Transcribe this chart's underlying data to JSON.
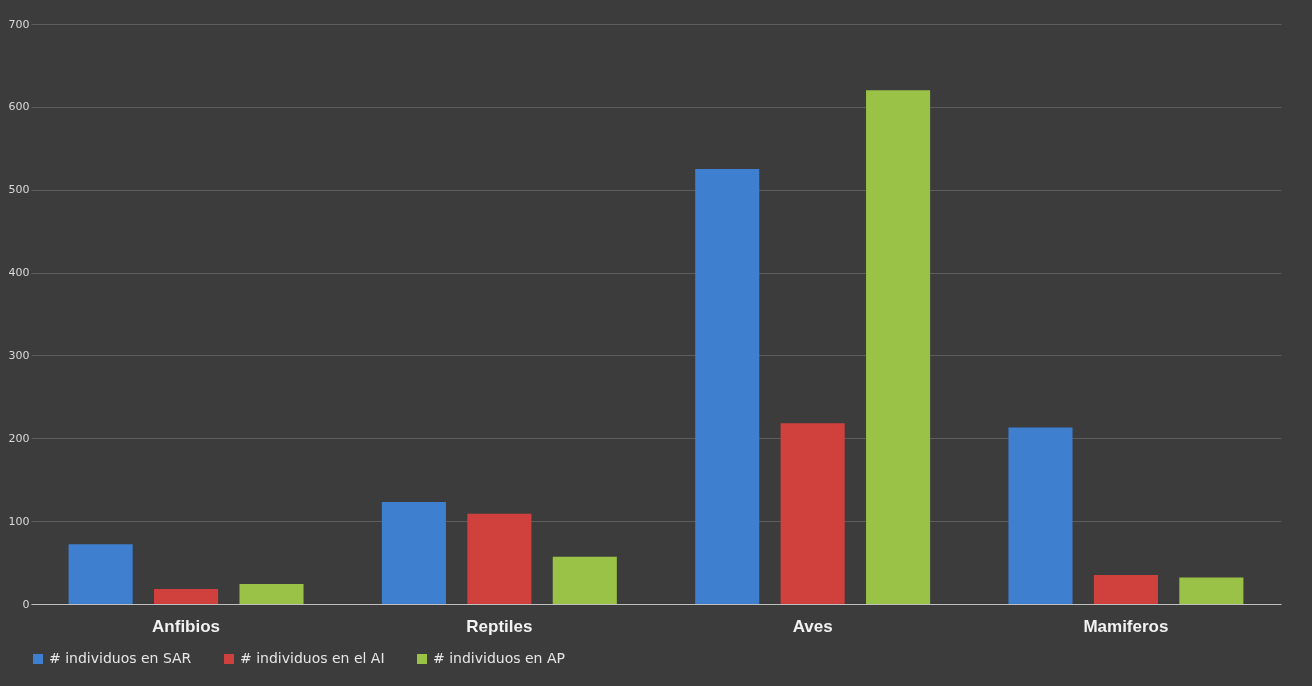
{
  "chart_data": {
    "type": "bar",
    "categories": [
      "Anfibios",
      "Reptiles",
      "Aves",
      "Mamiferos"
    ],
    "series": [
      {
        "name": "# individuos en SAR",
        "color": "#3f7fd0",
        "values": [
          72,
          123,
          525,
          213
        ]
      },
      {
        "name": "# individuos en el AI",
        "color": "#d0413e",
        "values": [
          18,
          109,
          218,
          35
        ]
      },
      {
        "name": "# individuos en AP",
        "color": "#99c246",
        "values": [
          24,
          57,
          620,
          32
        ]
      }
    ],
    "ylim": [
      0,
      700
    ],
    "yticks": [
      0,
      100,
      200,
      300,
      400,
      500,
      600,
      700
    ],
    "grid": "y",
    "legend": "bottom"
  }
}
